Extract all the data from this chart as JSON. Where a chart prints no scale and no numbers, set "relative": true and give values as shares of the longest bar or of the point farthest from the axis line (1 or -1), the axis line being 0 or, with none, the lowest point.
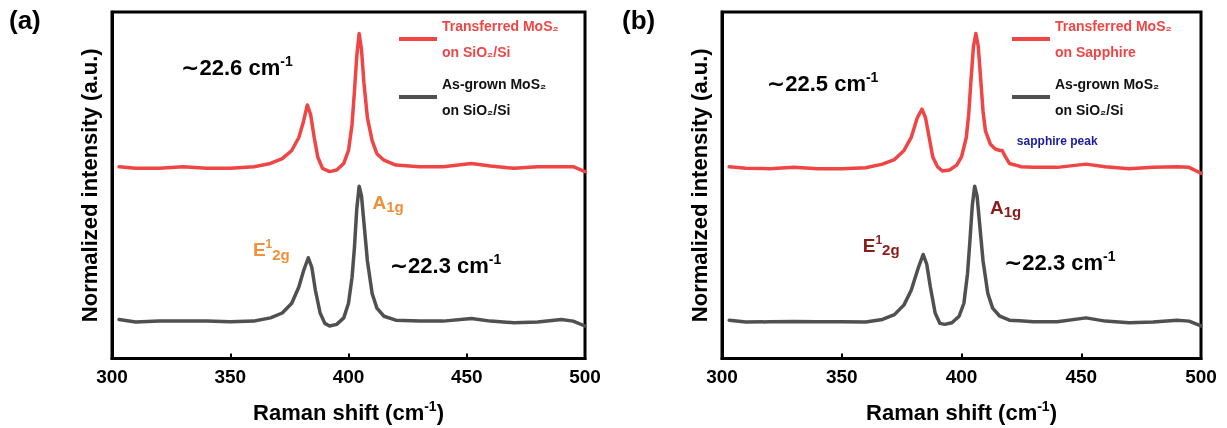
{
  "chart_data": [
    {
      "type": "line",
      "title": "(a)",
      "xlabel": "Raman shift (cm$^{-1}$)",
      "ylabel": "Normalized intensity (a.u.)",
      "relative": true,
      "xlim": [
        300,
        500
      ],
      "xticks": [
        300,
        350,
        400,
        450,
        500
      ],
      "legend": "top right",
      "grid": false,
      "marker": "none",
      "line_style": "solid",
      "series": [
        {
          "name": "Transferred MoS₂ on SiO₂/Si",
          "color": "#f04545",
          "x": [
            303,
            310,
            320,
            330,
            340,
            350,
            360,
            367,
            372,
            376,
            379,
            381,
            382.6,
            384,
            385.5,
            387,
            389,
            392,
            395,
            398,
            400,
            401.5,
            402.5,
            403.5,
            404.5,
            405.5,
            406.5,
            408,
            410,
            412,
            415,
            420,
            430,
            440,
            452,
            460,
            470,
            480,
            490,
            495,
            500
          ],
          "values": [
            0.59,
            0.585,
            0.585,
            0.59,
            0.585,
            0.585,
            0.59,
            0.6,
            0.615,
            0.64,
            0.68,
            0.73,
            0.78,
            0.75,
            0.68,
            0.62,
            0.585,
            0.575,
            0.58,
            0.6,
            0.64,
            0.72,
            0.82,
            0.93,
            1,
            0.95,
            0.85,
            0.74,
            0.67,
            0.63,
            0.61,
            0.595,
            0.59,
            0.59,
            0.6,
            0.592,
            0.585,
            0.59,
            0.59,
            0.59,
            0.575
          ]
        },
        {
          "name": "As-grown MoS₂ on SiO₂/Si",
          "color": "#505050",
          "x": [
            303,
            310,
            320,
            330,
            340,
            350,
            360,
            367,
            372,
            376,
            379,
            381,
            383,
            384.5,
            386,
            388,
            390,
            392,
            395,
            398,
            400,
            401.5,
            402.5,
            403.5,
            404.5,
            405.5,
            406.5,
            408,
            410,
            412,
            415,
            420,
            430,
            440,
            452,
            460,
            470,
            480,
            490,
            495,
            500
          ],
          "values": [
            0.12,
            0.112,
            0.115,
            0.115,
            0.115,
            0.113,
            0.115,
            0.125,
            0.14,
            0.17,
            0.22,
            0.27,
            0.31,
            0.28,
            0.21,
            0.14,
            0.108,
            0.1,
            0.105,
            0.125,
            0.17,
            0.25,
            0.34,
            0.46,
            0.53,
            0.5,
            0.42,
            0.3,
            0.2,
            0.155,
            0.13,
            0.118,
            0.115,
            0.115,
            0.123,
            0.115,
            0.11,
            0.112,
            0.12,
            0.115,
            0.1
          ]
        }
      ],
      "annotations": [
        "∼22.6 cm$^{-1}$",
        {
          "text": "E$^{1}$$_{2g}$",
          "x": 382.6,
          "y": 0.31
        },
        {
          "text": "A$_{1g}$",
          "x": 404.5,
          "y": 0.53
        },
        "∼22.3 cm$^{-1}$"
      ]
    },
    {
      "type": "line",
      "title": "(b)",
      "xlabel": "Raman shift (cm$^{-1}$)",
      "ylabel": "Normalized intensity (a.u.)",
      "relative": true,
      "xlim": [
        300,
        500
      ],
      "xticks": [
        300,
        350,
        400,
        450,
        500
      ],
      "legend": "top right",
      "grid": false,
      "marker": "none",
      "line_style": "solid",
      "series": [
        {
          "name": "Transferred MoS₂ on Sapphire",
          "color": "#f04545",
          "x": [
            303,
            310,
            320,
            330,
            340,
            350,
            360,
            367,
            372,
            376,
            379,
            381.5,
            383.5,
            385,
            386.5,
            388,
            390,
            392,
            395,
            398,
            400,
            402,
            403,
            404,
            405,
            406,
            407,
            408,
            409,
            410,
            412,
            414,
            416,
            417,
            418,
            420,
            425,
            430,
            440,
            452,
            460,
            470,
            480,
            490,
            495,
            500
          ],
          "values": [
            0.59,
            0.585,
            0.584,
            0.588,
            0.584,
            0.584,
            0.587,
            0.598,
            0.612,
            0.64,
            0.68,
            0.74,
            0.767,
            0.74,
            0.68,
            0.62,
            0.59,
            0.577,
            0.58,
            0.595,
            0.62,
            0.68,
            0.75,
            0.86,
            0.96,
            1,
            0.96,
            0.86,
            0.76,
            0.7,
            0.66,
            0.645,
            0.64,
            0.64,
            0.625,
            0.6,
            0.59,
            0.588,
            0.588,
            0.598,
            0.59,
            0.584,
            0.588,
            0.59,
            0.588,
            0.57
          ]
        },
        {
          "name": "As-grown MoS₂ on SiO₂/Si",
          "color": "#505050",
          "x": [
            303,
            310,
            320,
            330,
            340,
            350,
            360,
            367,
            372,
            376,
            379,
            382,
            384,
            385.5,
            387,
            389,
            391,
            393,
            396,
            399,
            401,
            402.5,
            403.5,
            404.5,
            405.5,
            406.5,
            407.5,
            409,
            411,
            413,
            416,
            420,
            430,
            440,
            452,
            460,
            470,
            480,
            490,
            495,
            500
          ],
          "values": [
            0.118,
            0.112,
            0.113,
            0.114,
            0.113,
            0.113,
            0.112,
            0.12,
            0.135,
            0.165,
            0.21,
            0.28,
            0.32,
            0.29,
            0.22,
            0.14,
            0.108,
            0.105,
            0.11,
            0.13,
            0.17,
            0.26,
            0.36,
            0.47,
            0.53,
            0.5,
            0.42,
            0.3,
            0.2,
            0.155,
            0.13,
            0.118,
            0.113,
            0.113,
            0.125,
            0.115,
            0.11,
            0.112,
            0.118,
            0.115,
            0.1
          ]
        }
      ],
      "annotations": [
        "∼22.5 cm$^{-1}$",
        {
          "text": "E$^{1}$$_{2g}$",
          "x": 384,
          "y": 0.32
        },
        {
          "text": "A$_{1g}$",
          "x": 405.5,
          "y": 0.53
        },
        "∼22.3 cm$^{-1}$",
        {
          "text": "sapphire peak",
          "x": 417,
          "y": 0.64
        }
      ]
    }
  ]
}
